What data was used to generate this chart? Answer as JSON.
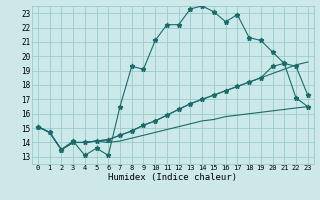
{
  "xlabel": "Humidex (Indice chaleur)",
  "xlim": [
    -0.5,
    23.5
  ],
  "ylim": [
    12.5,
    23.5
  ],
  "yticks": [
    13,
    14,
    15,
    16,
    17,
    18,
    19,
    20,
    21,
    22,
    23
  ],
  "xticks": [
    0,
    1,
    2,
    3,
    4,
    5,
    6,
    7,
    8,
    9,
    10,
    11,
    12,
    13,
    14,
    15,
    16,
    17,
    18,
    19,
    20,
    21,
    22,
    23
  ],
  "bg_color": "#cce8e8",
  "grid_color": "#99cccc",
  "line_color": "#1a6b6b",
  "line_jagged_x": [
    0,
    1,
    2,
    3,
    4,
    5,
    6,
    7,
    8,
    9,
    10,
    11,
    12,
    13,
    14,
    15,
    16,
    17,
    18,
    19,
    20,
    21,
    22,
    23
  ],
  "line_jagged_y": [
    15.1,
    14.7,
    13.5,
    14.1,
    13.1,
    13.6,
    13.1,
    16.5,
    19.3,
    19.1,
    21.1,
    22.2,
    22.2,
    23.3,
    23.5,
    23.1,
    22.4,
    22.9,
    21.3,
    21.1,
    20.3,
    19.5,
    19.3,
    17.3
  ],
  "line_smooth1_x": [
    0,
    1,
    2,
    3,
    4,
    5,
    6,
    7,
    8,
    9,
    10,
    11,
    12,
    13,
    14,
    15,
    16,
    17,
    18,
    19,
    20,
    21,
    22,
    23
  ],
  "line_smooth1_y": [
    15.1,
    14.7,
    13.5,
    14.0,
    14.0,
    14.1,
    14.0,
    14.1,
    14.3,
    14.5,
    14.7,
    14.9,
    15.1,
    15.3,
    15.5,
    15.6,
    15.8,
    15.9,
    16.0,
    16.1,
    16.2,
    16.3,
    16.4,
    16.5
  ],
  "line_smooth2_x": [
    0,
    1,
    2,
    3,
    4,
    5,
    6,
    7,
    8,
    9,
    10,
    11,
    12,
    13,
    14,
    15,
    16,
    17,
    18,
    19,
    20,
    21,
    22,
    23
  ],
  "line_smooth2_y": [
    15.1,
    14.7,
    13.5,
    14.0,
    14.0,
    14.1,
    14.2,
    14.5,
    14.8,
    15.2,
    15.5,
    15.9,
    16.3,
    16.7,
    17.0,
    17.3,
    17.6,
    17.9,
    18.2,
    18.5,
    18.8,
    19.1,
    19.4,
    19.6
  ],
  "line_drop_x": [
    0,
    1,
    2,
    3,
    4,
    5,
    6,
    7,
    8,
    9,
    10,
    11,
    12,
    13,
    14,
    15,
    16,
    17,
    18,
    19,
    20,
    21,
    22,
    23
  ],
  "line_drop_y": [
    15.1,
    14.7,
    13.5,
    14.0,
    14.0,
    14.1,
    14.2,
    14.5,
    14.8,
    15.2,
    15.5,
    15.9,
    16.3,
    16.7,
    17.0,
    17.3,
    17.6,
    17.9,
    18.2,
    18.5,
    19.3,
    19.5,
    17.1,
    16.5
  ]
}
